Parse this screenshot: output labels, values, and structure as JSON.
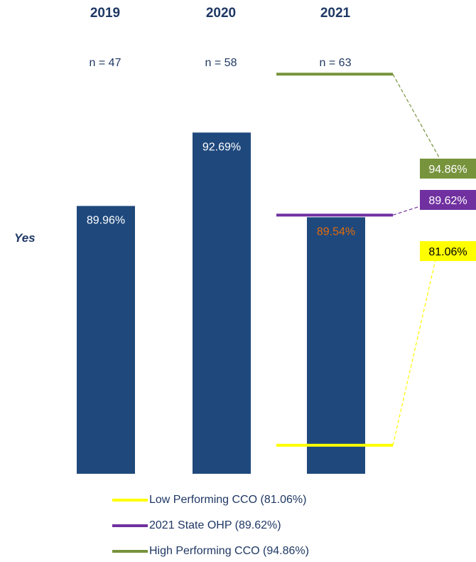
{
  "chart_data": {
    "type": "bar",
    "categories": [
      "2019",
      "2020",
      "2021"
    ],
    "n_labels": [
      "n = 47",
      "n = 58",
      "n = 63"
    ],
    "values": [
      89.96,
      92.69,
      89.54
    ],
    "value_labels": [
      "89.96%",
      "92.69%",
      "89.54%"
    ],
    "row_label": "Yes",
    "bar_color": "#1f497d",
    "reference_lines": [
      {
        "name": "High Performing CCO (94.86%)",
        "value": 94.86,
        "label": "94.86%",
        "color": "#77933c",
        "label_text_color": "#ffffff"
      },
      {
        "name": "2021 State OHP (89.62%)",
        "value": 89.62,
        "label": "89.62%",
        "color": "#7030a0",
        "label_text_color": "#ffffff"
      },
      {
        "name": "Low Performing CCO (81.06%)",
        "value": 81.06,
        "label": "81.06%",
        "color": "#ffff00",
        "label_text_color": "#000000"
      }
    ],
    "highlight_value_color": "#e26b0a"
  },
  "legend": [
    {
      "label": "Low Performing CCO (81.06%)",
      "color": "#ffff00"
    },
    {
      "label": "2021 State OHP (89.62%)",
      "color": "#7030a0"
    },
    {
      "label": "High Performing CCO (94.86%)",
      "color": "#77933c"
    }
  ]
}
